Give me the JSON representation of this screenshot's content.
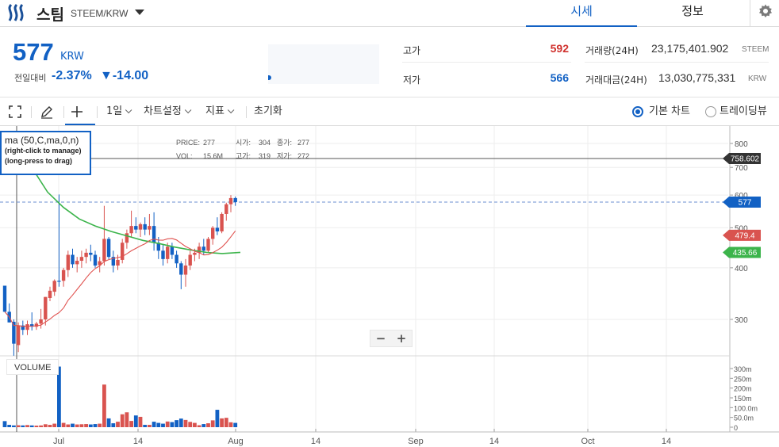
{
  "header": {
    "coin_name": "스팀",
    "pair": "STEEM/KRW",
    "tabs": [
      {
        "label": "시세",
        "active": true
      },
      {
        "label": "정보",
        "active": false
      }
    ]
  },
  "summary": {
    "price": "577",
    "currency": "KRW",
    "prev_label": "전일대비",
    "change_rate": "-2.37%",
    "change_amount": "▼-14.00",
    "high_label": "고가",
    "high_value": "592",
    "low_label": "저가",
    "low_value": "566",
    "volume_label": "거래량(24H)",
    "volume_value": "23,175,401.902",
    "volume_unit": "STEEM",
    "amount_label": "거래대금(24H)",
    "amount_value": "13,030,775,331",
    "amount_unit": "KRW"
  },
  "toolbar": {
    "interval": "1일",
    "chart_settings": "차트설정",
    "indicators": "지표",
    "reset": "초기화",
    "view_basic": "기본 차트",
    "view_tradingview": "트레이딩뷰"
  },
  "indicator_box": {
    "title": "ma (50,C,ma,0,n)",
    "hint1": "(right-click to manage)",
    "hint2": "(long-press to drag)"
  },
  "legend": {
    "price_label": "PRICE:",
    "price": "277",
    "open_label": "시가:",
    "open": "304",
    "close_label": "종가:",
    "close": "277",
    "vol_label": "VOL:",
    "vol": "15.6M",
    "high_label": "고가:",
    "high": "319",
    "low_label": "저가:",
    "low": "272"
  },
  "volume_label": "VOLUME",
  "colors": {
    "up": "#d9534f",
    "down": "#1261c4",
    "ma_green": "#3cb44b",
    "ma_red": "#e0524f",
    "accent": "#1261c4"
  },
  "chart_data": {
    "type": "candlestick",
    "price_axis_ticks": [
      "800",
      "700",
      "600",
      "500",
      "400",
      "300"
    ],
    "volume_axis_ticks": [
      "300m",
      "250m",
      "200m",
      "150m",
      "100.0m",
      "50.0m",
      "0"
    ],
    "x_ticks": [
      "Jul",
      "14",
      "Aug",
      "14",
      "Sep",
      "14",
      "Oct",
      "14"
    ],
    "crosshair_price": "758.602",
    "price_tags": [
      {
        "value": "577",
        "color": "#1261c4"
      },
      {
        "value": "479.4",
        "color": "#d9534f"
      },
      {
        "value": "435.66",
        "color": "#3cb44b"
      }
    ],
    "candles": [
      [
        362,
        362,
        313,
        313
      ],
      [
        313,
        328,
        295,
        295
      ],
      [
        296,
        300,
        245,
        262
      ],
      [
        260,
        295,
        250,
        290
      ],
      [
        290,
        298,
        275,
        283
      ],
      [
        283,
        298,
        275,
        292
      ],
      [
        292,
        312,
        282,
        288
      ],
      [
        288,
        296,
        283,
        293
      ],
      [
        293,
        318,
        285,
        300
      ],
      [
        300,
        340,
        290,
        340
      ],
      [
        338,
        360,
        332,
        352
      ],
      [
        350,
        375,
        342,
        372
      ],
      [
        372,
        602,
        360,
        370
      ],
      [
        372,
        400,
        360,
        395
      ],
      [
        395,
        440,
        380,
        430
      ],
      [
        430,
        445,
        400,
        408
      ],
      [
        408,
        425,
        390,
        416
      ],
      [
        416,
        440,
        400,
        425
      ],
      [
        425,
        445,
        410,
        435
      ],
      [
        435,
        455,
        415,
        430
      ],
      [
        430,
        440,
        400,
        405
      ],
      [
        406,
        425,
        390,
        415
      ],
      [
        415,
        565,
        405,
        470
      ],
      [
        470,
        475,
        420,
        425
      ],
      [
        425,
        440,
        390,
        405
      ],
      [
        405,
        430,
        395,
        418
      ],
      [
        418,
        470,
        410,
        460
      ],
      [
        460,
        495,
        445,
        485
      ],
      [
        485,
        550,
        475,
        505
      ],
      [
        505,
        530,
        485,
        495
      ],
      [
        495,
        515,
        475,
        510
      ],
      [
        510,
        530,
        480,
        495
      ],
      [
        495,
        540,
        480,
        505
      ],
      [
        505,
        545,
        440,
        460
      ],
      [
        460,
        475,
        420,
        440
      ],
      [
        440,
        455,
        405,
        420
      ],
      [
        420,
        460,
        410,
        450
      ],
      [
        450,
        460,
        420,
        430
      ],
      [
        430,
        440,
        400,
        410
      ],
      [
        410,
        415,
        355,
        385
      ],
      [
        385,
        420,
        360,
        405
      ],
      [
        405,
        440,
        395,
        430
      ],
      [
        430,
        445,
        415,
        435
      ],
      [
        435,
        460,
        420,
        450
      ],
      [
        450,
        470,
        430,
        440
      ],
      [
        440,
        475,
        435,
        470
      ],
      [
        470,
        505,
        455,
        500
      ],
      [
        500,
        530,
        480,
        490
      ],
      [
        490,
        545,
        485,
        540
      ],
      [
        540,
        575,
        520,
        570
      ],
      [
        570,
        600,
        545,
        590
      ],
      [
        590,
        595,
        565,
        577
      ]
    ],
    "volumes": [
      31,
      12,
      9,
      10,
      9,
      11,
      9,
      8,
      9,
      15,
      12,
      18,
      310,
      22,
      14,
      18,
      14,
      15,
      16,
      14,
      16,
      18,
      218,
      45,
      20,
      28,
      66,
      76,
      32,
      60,
      53,
      12,
      12,
      28,
      22,
      18,
      29,
      26,
      36,
      44,
      37,
      27,
      22,
      10,
      16,
      20,
      35,
      89,
      45,
      48,
      25,
      22
    ]
  }
}
